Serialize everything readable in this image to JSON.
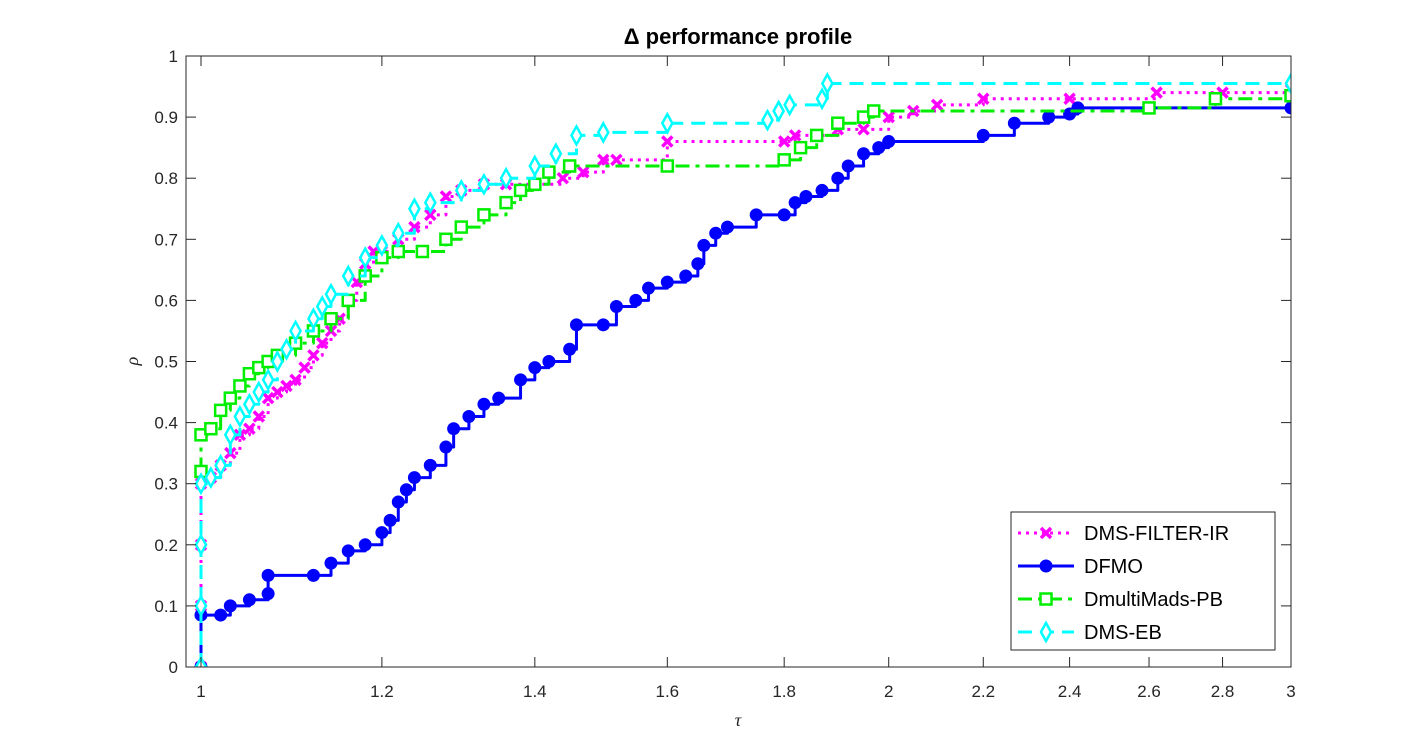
{
  "chart_data": {
    "type": "line",
    "title": "Δ performance profile",
    "xlabel": "τ",
    "ylabel": "ρ",
    "x_scale": "log2",
    "xlim": [
      0.985,
      3
    ],
    "ylim": [
      0,
      1
    ],
    "x_ticks": [
      1,
      1.2,
      1.4,
      1.6,
      1.8,
      2,
      2.2,
      2.4,
      2.6,
      2.8,
      3
    ],
    "x_tick_labels": [
      "1",
      "1.2",
      "1.4",
      "1.6",
      "1.8",
      "2",
      "2.2",
      "2.4",
      "2.6",
      "2.8",
      "3"
    ],
    "y_ticks": [
      0,
      0.1,
      0.2,
      0.3,
      0.4,
      0.5,
      0.6,
      0.7,
      0.8,
      0.9,
      1
    ],
    "y_tick_labels": [
      "0",
      "0.1",
      "0.2",
      "0.3",
      "0.4",
      "0.5",
      "0.6",
      "0.7",
      "0.8",
      "0.9",
      "1"
    ],
    "grid": false,
    "legend_position": "bottom-right",
    "series": [
      {
        "name": "DMS-FILTER-IR",
        "color": "#ff00ff",
        "line_style": "dotted",
        "marker": "x",
        "points": [
          [
            1,
            0
          ],
          [
            1,
            0.1
          ],
          [
            1,
            0.2
          ],
          [
            1,
            0.3
          ],
          [
            1.01,
            0.31
          ],
          [
            1.02,
            0.33
          ],
          [
            1.03,
            0.35
          ],
          [
            1.04,
            0.38
          ],
          [
            1.05,
            0.39
          ],
          [
            1.06,
            0.41
          ],
          [
            1.07,
            0.44
          ],
          [
            1.08,
            0.45
          ],
          [
            1.09,
            0.46
          ],
          [
            1.1,
            0.47
          ],
          [
            1.11,
            0.49
          ],
          [
            1.12,
            0.51
          ],
          [
            1.13,
            0.53
          ],
          [
            1.14,
            0.55
          ],
          [
            1.15,
            0.57
          ],
          [
            1.16,
            0.6
          ],
          [
            1.17,
            0.63
          ],
          [
            1.18,
            0.66
          ],
          [
            1.19,
            0.68
          ],
          [
            1.2,
            0.68
          ],
          [
            1.22,
            0.7
          ],
          [
            1.24,
            0.72
          ],
          [
            1.26,
            0.74
          ],
          [
            1.28,
            0.77
          ],
          [
            1.3,
            0.78
          ],
          [
            1.33,
            0.79
          ],
          [
            1.36,
            0.79
          ],
          [
            1.4,
            0.79
          ],
          [
            1.44,
            0.8
          ],
          [
            1.47,
            0.81
          ],
          [
            1.5,
            0.83
          ],
          [
            1.52,
            0.83
          ],
          [
            1.6,
            0.86
          ],
          [
            1.8,
            0.86
          ],
          [
            1.82,
            0.87
          ],
          [
            1.86,
            0.87
          ],
          [
            1.9,
            0.88
          ],
          [
            1.95,
            0.88
          ],
          [
            2,
            0.9
          ],
          [
            2.05,
            0.91
          ],
          [
            2.1,
            0.92
          ],
          [
            2.2,
            0.93
          ],
          [
            2.4,
            0.93
          ],
          [
            2.62,
            0.94
          ],
          [
            2.8,
            0.94
          ],
          [
            3,
            0.945
          ]
        ]
      },
      {
        "name": "DFMO",
        "color": "#0000ff",
        "line_style": "solid",
        "marker": "filled-circle",
        "points": [
          [
            1,
            0
          ],
          [
            1,
            0.085
          ],
          [
            1.02,
            0.085
          ],
          [
            1.03,
            0.1
          ],
          [
            1.05,
            0.11
          ],
          [
            1.07,
            0.12
          ],
          [
            1.07,
            0.15
          ],
          [
            1.12,
            0.15
          ],
          [
            1.14,
            0.17
          ],
          [
            1.16,
            0.19
          ],
          [
            1.18,
            0.2
          ],
          [
            1.2,
            0.22
          ],
          [
            1.21,
            0.24
          ],
          [
            1.22,
            0.27
          ],
          [
            1.23,
            0.29
          ],
          [
            1.24,
            0.31
          ],
          [
            1.26,
            0.33
          ],
          [
            1.28,
            0.36
          ],
          [
            1.29,
            0.39
          ],
          [
            1.31,
            0.41
          ],
          [
            1.33,
            0.43
          ],
          [
            1.35,
            0.44
          ],
          [
            1.38,
            0.47
          ],
          [
            1.4,
            0.49
          ],
          [
            1.42,
            0.5
          ],
          [
            1.45,
            0.52
          ],
          [
            1.46,
            0.56
          ],
          [
            1.5,
            0.56
          ],
          [
            1.52,
            0.59
          ],
          [
            1.55,
            0.6
          ],
          [
            1.57,
            0.62
          ],
          [
            1.6,
            0.63
          ],
          [
            1.63,
            0.64
          ],
          [
            1.65,
            0.66
          ],
          [
            1.66,
            0.69
          ],
          [
            1.68,
            0.71
          ],
          [
            1.7,
            0.72
          ],
          [
            1.75,
            0.74
          ],
          [
            1.8,
            0.74
          ],
          [
            1.82,
            0.76
          ],
          [
            1.84,
            0.77
          ],
          [
            1.87,
            0.78
          ],
          [
            1.9,
            0.8
          ],
          [
            1.92,
            0.82
          ],
          [
            1.95,
            0.84
          ],
          [
            1.98,
            0.85
          ],
          [
            2,
            0.86
          ],
          [
            2.2,
            0.87
          ],
          [
            2.27,
            0.89
          ],
          [
            2.35,
            0.9
          ],
          [
            2.4,
            0.905
          ],
          [
            2.42,
            0.915
          ],
          [
            3,
            0.915
          ]
        ]
      },
      {
        "name": "DmultiMads-PB",
        "color": "#00ee00",
        "line_style": "dashdot",
        "marker": "square",
        "points": [
          [
            1,
            0.32
          ],
          [
            1,
            0.38
          ],
          [
            1.01,
            0.39
          ],
          [
            1.02,
            0.42
          ],
          [
            1.03,
            0.44
          ],
          [
            1.04,
            0.46
          ],
          [
            1.05,
            0.48
          ],
          [
            1.06,
            0.49
          ],
          [
            1.07,
            0.5
          ],
          [
            1.08,
            0.51
          ],
          [
            1.1,
            0.53
          ],
          [
            1.12,
            0.55
          ],
          [
            1.14,
            0.57
          ],
          [
            1.16,
            0.6
          ],
          [
            1.18,
            0.64
          ],
          [
            1.2,
            0.67
          ],
          [
            1.22,
            0.68
          ],
          [
            1.25,
            0.68
          ],
          [
            1.28,
            0.7
          ],
          [
            1.3,
            0.72
          ],
          [
            1.33,
            0.74
          ],
          [
            1.36,
            0.76
          ],
          [
            1.38,
            0.78
          ],
          [
            1.4,
            0.79
          ],
          [
            1.42,
            0.81
          ],
          [
            1.45,
            0.82
          ],
          [
            1.6,
            0.82
          ],
          [
            1.8,
            0.83
          ],
          [
            1.83,
            0.85
          ],
          [
            1.86,
            0.87
          ],
          [
            1.9,
            0.89
          ],
          [
            1.95,
            0.9
          ],
          [
            1.97,
            0.91
          ],
          [
            2.6,
            0.915
          ],
          [
            2.78,
            0.93
          ],
          [
            3,
            0.935
          ]
        ]
      },
      {
        "name": "DMS-EB",
        "color": "#00ffff",
        "line_style": "dashed",
        "marker": "diamond",
        "points": [
          [
            1,
            0
          ],
          [
            1,
            0.1
          ],
          [
            1,
            0.2
          ],
          [
            1,
            0.3
          ],
          [
            1.01,
            0.31
          ],
          [
            1.02,
            0.33
          ],
          [
            1.03,
            0.38
          ],
          [
            1.04,
            0.41
          ],
          [
            1.05,
            0.43
          ],
          [
            1.06,
            0.45
          ],
          [
            1.07,
            0.47
          ],
          [
            1.08,
            0.5
          ],
          [
            1.09,
            0.52
          ],
          [
            1.1,
            0.55
          ],
          [
            1.12,
            0.57
          ],
          [
            1.13,
            0.59
          ],
          [
            1.14,
            0.61
          ],
          [
            1.16,
            0.64
          ],
          [
            1.18,
            0.67
          ],
          [
            1.2,
            0.69
          ],
          [
            1.22,
            0.71
          ],
          [
            1.24,
            0.75
          ],
          [
            1.26,
            0.76
          ],
          [
            1.3,
            0.78
          ],
          [
            1.33,
            0.79
          ],
          [
            1.36,
            0.8
          ],
          [
            1.4,
            0.82
          ],
          [
            1.43,
            0.84
          ],
          [
            1.46,
            0.87
          ],
          [
            1.5,
            0.875
          ],
          [
            1.6,
            0.89
          ],
          [
            1.77,
            0.895
          ],
          [
            1.79,
            0.91
          ],
          [
            1.81,
            0.92
          ],
          [
            1.87,
            0.93
          ],
          [
            1.88,
            0.955
          ],
          [
            3,
            0.955
          ]
        ]
      }
    ]
  }
}
